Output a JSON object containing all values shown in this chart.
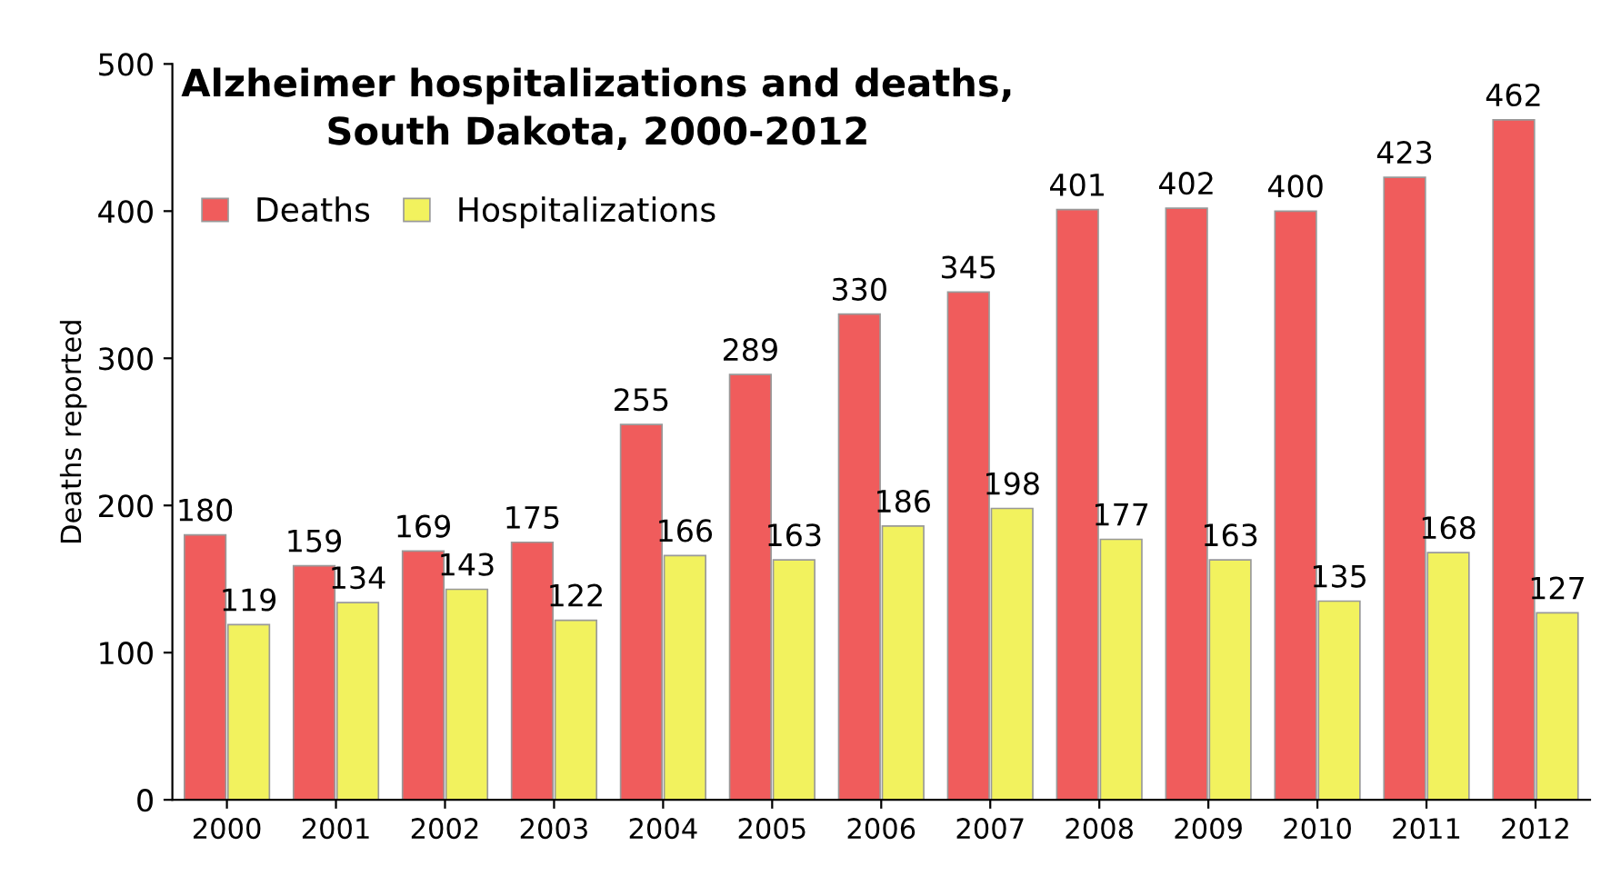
{
  "chart_data": {
    "type": "bar",
    "title": "Alzheimer hospitalizations and deaths,\nSouth Dakota, 2000-2012",
    "ylabel": "Deaths reported",
    "categories": [
      "2000",
      "2001",
      "2002",
      "2003",
      "2004",
      "2005",
      "2006",
      "2007",
      "2008",
      "2009",
      "2010",
      "2011",
      "2012"
    ],
    "series": [
      {
        "name": "Deaths",
        "color": "#f05c5c",
        "values": [
          180,
          159,
          169,
          175,
          255,
          289,
          330,
          345,
          401,
          402,
          400,
          423,
          462
        ]
      },
      {
        "name": "Hospitalizations",
        "color": "#f2f25e",
        "values": [
          119,
          134,
          143,
          122,
          166,
          163,
          186,
          198,
          177,
          163,
          135,
          168,
          127
        ]
      }
    ],
    "ylim": [
      0,
      500
    ],
    "yticks": [
      0,
      100,
      200,
      300,
      400,
      500
    ],
    "grid": false,
    "legend": "top left",
    "data_labels": true
  }
}
